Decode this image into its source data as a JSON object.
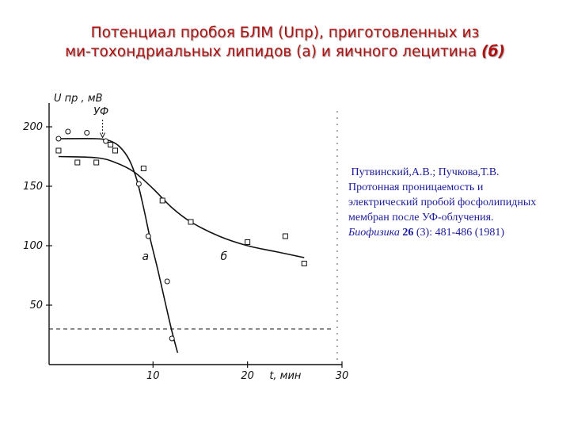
{
  "title": {
    "line1": "Потенциал пробоя БЛМ (Uпр), приготовленных из",
    "line2_main": "ми-тохондриальных липидов (а) и яичного лецитина",
    "line2_italic": "(б)"
  },
  "reference": {
    "authors": "Путвинский,А.В.; Пучкова,Т.В.",
    "text": "Протонная проницаемость и электрический пробой фосфолипидных мембран после УФ-облучения.",
    "journal": "Биофизика",
    "volume": "26",
    "issue_pages": "(3): 481-486",
    "year": "(1981)"
  },
  "chart_data": {
    "type": "scatter",
    "ylabel": "U пр , мВ",
    "xlabel": "t, мин",
    "annotation": "УФ",
    "xlim": [
      -1,
      30
    ],
    "ylim": [
      0,
      220
    ],
    "x_ticks": [
      "10",
      "20",
      "30"
    ],
    "y_ticks": [
      "50",
      "100",
      "150",
      "200"
    ],
    "reference_line_y": 30,
    "uv_time": 5,
    "series": [
      {
        "name": "а",
        "marker": "circle",
        "points": [
          [
            0,
            190
          ],
          [
            1,
            196
          ],
          [
            3,
            195
          ],
          [
            5,
            188
          ],
          [
            8.5,
            152
          ],
          [
            9.5,
            108
          ],
          [
            11.5,
            70
          ],
          [
            12,
            22
          ]
        ],
        "curve": [
          [
            0,
            190
          ],
          [
            4,
            190
          ],
          [
            5.5,
            188
          ],
          [
            6.5,
            183
          ],
          [
            7.5,
            172
          ],
          [
            8.3,
            155
          ],
          [
            9,
            132
          ],
          [
            9.7,
            106
          ],
          [
            10.5,
            80
          ],
          [
            11.3,
            52
          ],
          [
            12,
            28
          ],
          [
            12.6,
            10
          ]
        ]
      },
      {
        "name": "б",
        "marker": "square",
        "points": [
          [
            0,
            180
          ],
          [
            2,
            170
          ],
          [
            4,
            170
          ],
          [
            5.5,
            185
          ],
          [
            6,
            180
          ],
          [
            9,
            165
          ],
          [
            11,
            138
          ],
          [
            14,
            120
          ],
          [
            20,
            103
          ],
          [
            24,
            108
          ],
          [
            26,
            85
          ]
        ],
        "curve": [
          [
            0,
            175
          ],
          [
            4,
            174
          ],
          [
            6,
            170
          ],
          [
            8,
            162
          ],
          [
            10,
            148
          ],
          [
            12,
            132
          ],
          [
            14,
            120
          ],
          [
            17,
            108
          ],
          [
            20,
            100
          ],
          [
            23,
            95
          ],
          [
            26,
            90
          ]
        ]
      }
    ]
  }
}
